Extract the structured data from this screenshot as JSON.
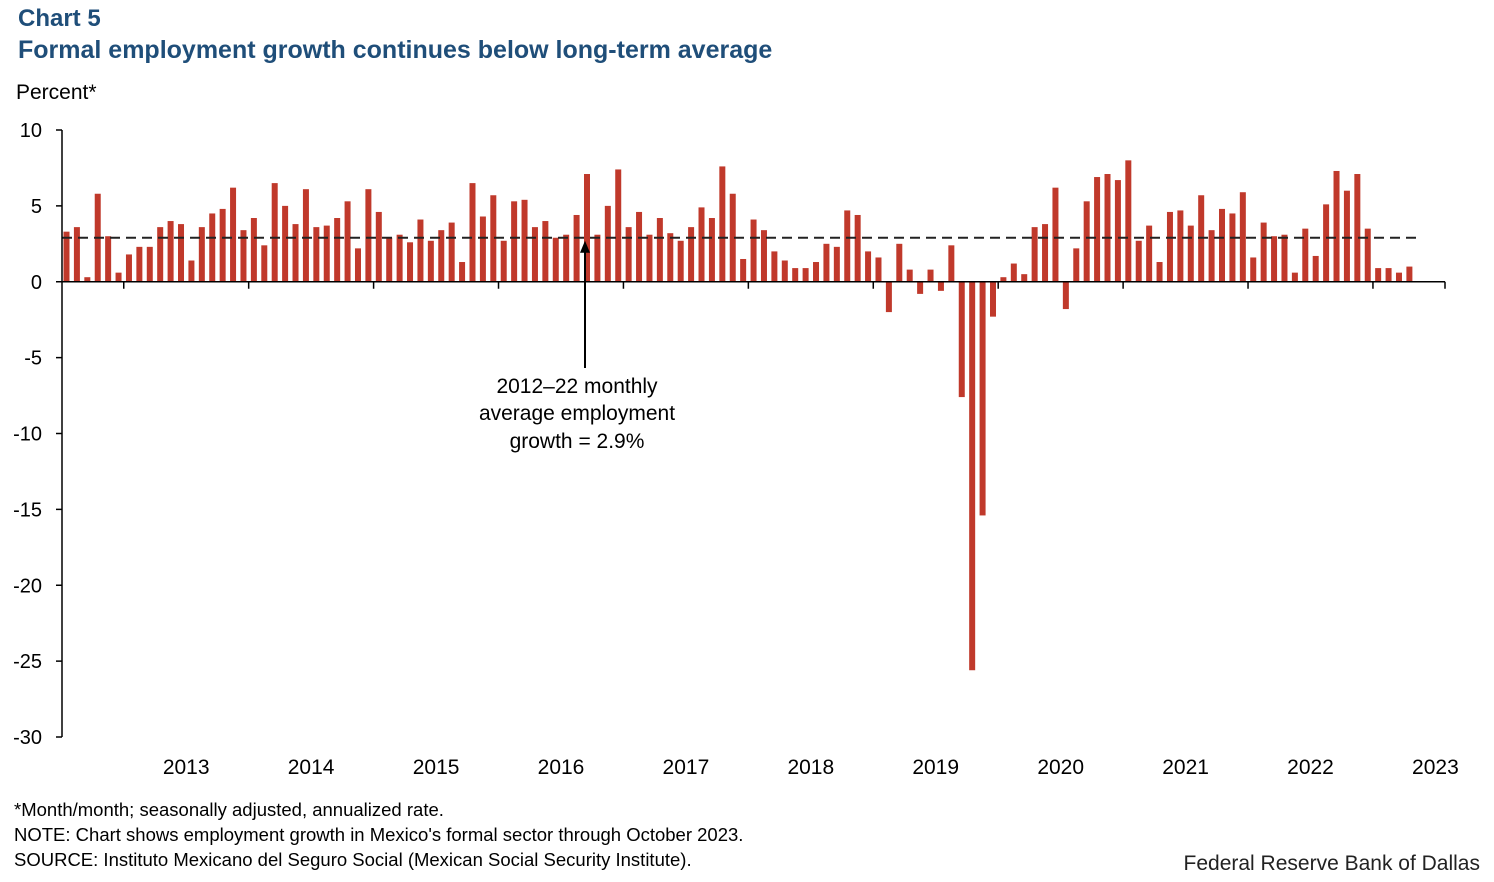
{
  "header": {
    "chart_number": "Chart 5",
    "title": "Formal employment growth continues below long-term average",
    "unit_label": "Percent*"
  },
  "chart_data": {
    "type": "bar",
    "title": "Formal employment growth continues below long-term average",
    "ylabel": "Percent*",
    "xlabel": "",
    "ylim": [
      -30,
      10
    ],
    "yticks": [
      10,
      5,
      0,
      -5,
      -10,
      -15,
      -20,
      -25,
      -30
    ],
    "year_labels": [
      "2013",
      "2014",
      "2015",
      "2016",
      "2017",
      "2018",
      "2019",
      "2020",
      "2021",
      "2022",
      "2023"
    ],
    "bar_color": "#c0392b",
    "series": [
      {
        "name": "Formal employment growth",
        "values": [
          3.3,
          3.6,
          0.3,
          5.8,
          3.0,
          0.6,
          1.8,
          2.3,
          2.3,
          3.6,
          4.0,
          3.8,
          1.4,
          3.6,
          4.5,
          4.8,
          6.2,
          3.4,
          4.2,
          2.4,
          6.5,
          5.0,
          3.8,
          6.1,
          3.6,
          3.7,
          4.2,
          5.3,
          2.2,
          6.1,
          4.6,
          2.9,
          3.1,
          2.6,
          4.1,
          2.7,
          3.4,
          3.9,
          1.3,
          6.5,
          4.3,
          5.7,
          2.7,
          5.3,
          5.4,
          3.6,
          4.0,
          2.9,
          3.1,
          4.4,
          7.1,
          3.1,
          5.0,
          7.4,
          3.6,
          4.6,
          3.1,
          4.2,
          3.2,
          2.7,
          3.6,
          4.9,
          4.2,
          7.6,
          5.8,
          1.5,
          4.1,
          3.4,
          2.0,
          1.4,
          0.9,
          0.9,
          1.3,
          2.5,
          2.3,
          4.7,
          4.4,
          2.0,
          1.6,
          -2.0,
          2.5,
          0.8,
          -0.8,
          0.8,
          -0.6,
          2.4,
          -7.6,
          -25.6,
          -15.4,
          -2.3,
          0.3,
          1.2,
          0.5,
          3.6,
          3.8,
          6.2,
          -1.8,
          2.2,
          5.3,
          6.9,
          7.1,
          6.7,
          8.0,
          2.7,
          3.7,
          1.3,
          4.6,
          4.7,
          3.7,
          5.7,
          3.4,
          4.8,
          4.5,
          5.9,
          1.6,
          3.9,
          3.0,
          3.1,
          0.6,
          3.5,
          1.7,
          5.1,
          7.3,
          6.0,
          7.1,
          3.5,
          0.9,
          0.9,
          0.6,
          1.0
        ]
      }
    ],
    "reference_line": {
      "label": "2012–22 monthly average employment growth",
      "value": 2.9
    },
    "annotation_lines": [
      "2012–22 monthly",
      "average employment",
      "growth = 2.9%"
    ]
  },
  "footer": {
    "note_1": "*Month/month; seasonally adjusted, annualized rate.",
    "note_2": "NOTE: Chart shows employment growth in Mexico's formal sector through October 2023.",
    "note_3": "SOURCE: Instituto Mexicano del Seguro Social (Mexican Social Security Institute).",
    "credit": "Federal Reserve Bank of Dallas"
  }
}
